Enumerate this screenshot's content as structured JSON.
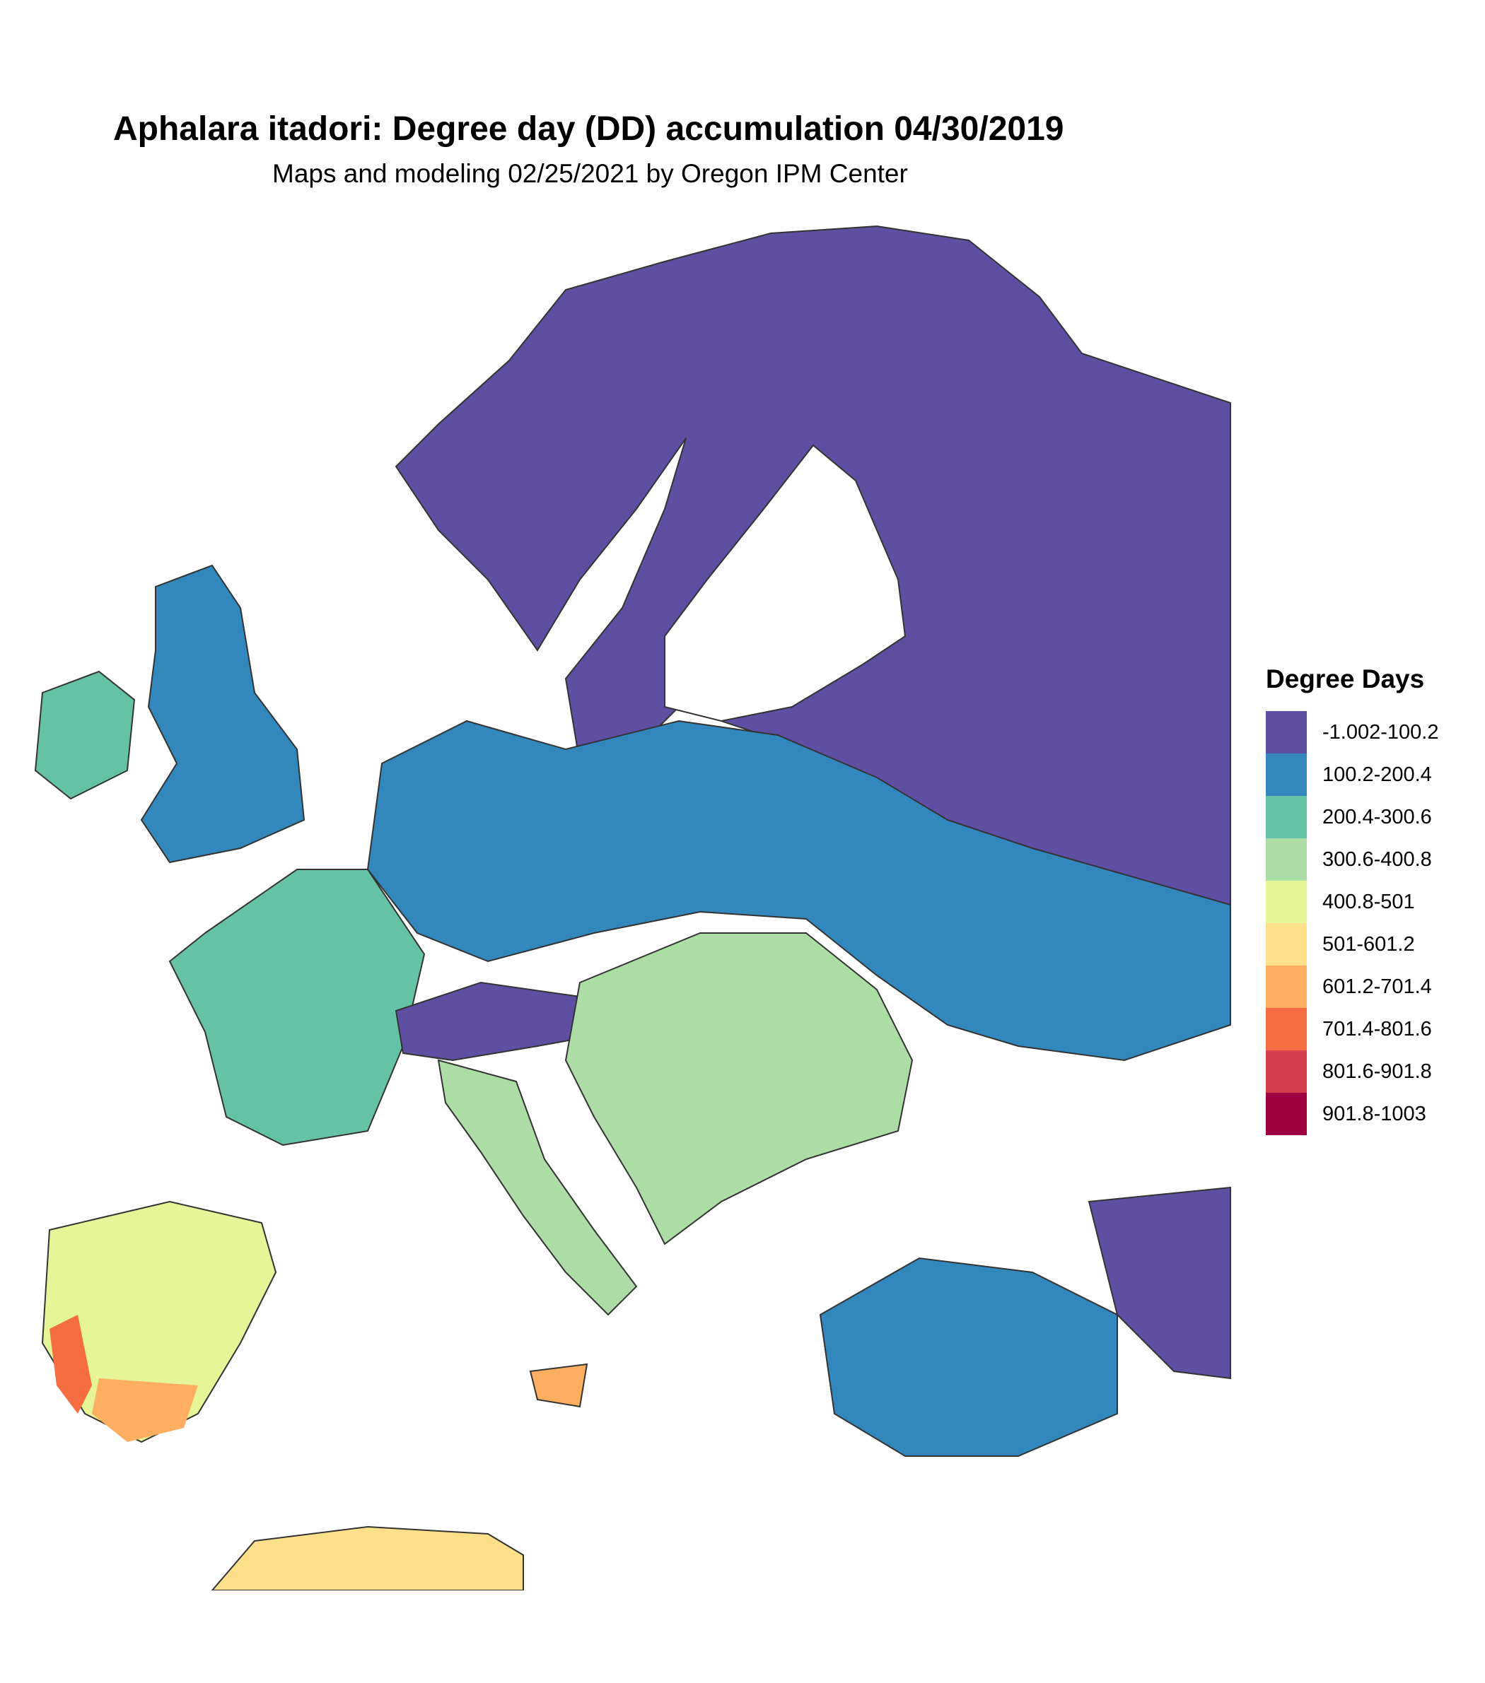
{
  "title": "Aphalara itadori: Degree day (DD) accumulation 04/30/2019",
  "subtitle": "Maps and modeling 02/25/2021 by Oregon IPM Center",
  "legend": {
    "title": "Degree Days",
    "items": [
      {
        "label": "-1.002-100.2",
        "color": "#5E4FA2"
      },
      {
        "label": "100.2-200.4",
        "color": "#3288BD"
      },
      {
        "label": "200.4-300.6",
        "color": "#66C2A5"
      },
      {
        "label": "300.6-400.8",
        "color": "#ABDDA4"
      },
      {
        "label": "400.8-501",
        "color": "#E6F598"
      },
      {
        "label": "501-601.2",
        "color": "#FEE08B"
      },
      {
        "label": "601.2-701.4",
        "color": "#FDAE61"
      },
      {
        "label": "701.4-801.6",
        "color": "#F46D43"
      },
      {
        "label": "801.6-901.8",
        "color": "#D53E4F"
      },
      {
        "label": "901.8-1003",
        "color": "#9E0142"
      }
    ]
  }
}
